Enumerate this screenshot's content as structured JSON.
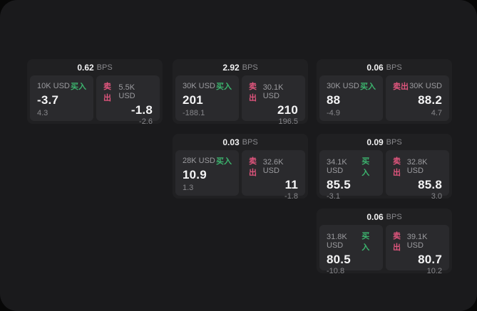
{
  "labels": {
    "bps_unit": "BPS",
    "buy": "买入",
    "sell": "卖出"
  },
  "colors": {
    "page_bg": "#1a1a1c",
    "backdrop": "#070707",
    "card_bg": "#202022",
    "panel_bg": "#2a2a2d",
    "buy_color": "#3cb46e",
    "sell_color": "#e0557d"
  },
  "cards": [
    {
      "bps": "0.62",
      "buy": {
        "size": "10K USD",
        "value": "-3.7",
        "sub": "4.3"
      },
      "sell": {
        "size": "5.5K USD",
        "value": "-1.8",
        "sub": "-2.6"
      }
    },
    {
      "bps": "2.92",
      "buy": {
        "size": "30K USD",
        "value": "201",
        "sub": "-188.1"
      },
      "sell": {
        "size": "30.1K USD",
        "value": "210",
        "sub": "196.5"
      }
    },
    {
      "bps": "0.06",
      "buy": {
        "size": "30K USD",
        "value": "88",
        "sub": "-4.9"
      },
      "sell": {
        "size": "30K USD",
        "value": "88.2",
        "sub": "4.7"
      }
    },
    {
      "bps": "0.03",
      "buy": {
        "size": "28K USD",
        "value": "10.9",
        "sub": "1.3"
      },
      "sell": {
        "size": "32.6K USD",
        "value": "11",
        "sub": "-1.8"
      }
    },
    {
      "bps": "0.09",
      "buy": {
        "size": "34.1K USD",
        "value": "85.5",
        "sub": "-3.1"
      },
      "sell": {
        "size": "32.8K USD",
        "value": "85.8",
        "sub": "3.0"
      }
    },
    {
      "bps": "0.06",
      "buy": {
        "size": "31.8K USD",
        "value": "80.5",
        "sub": "-10.8"
      },
      "sell": {
        "size": "39.1K USD",
        "value": "80.7",
        "sub": "10.2"
      }
    }
  ]
}
